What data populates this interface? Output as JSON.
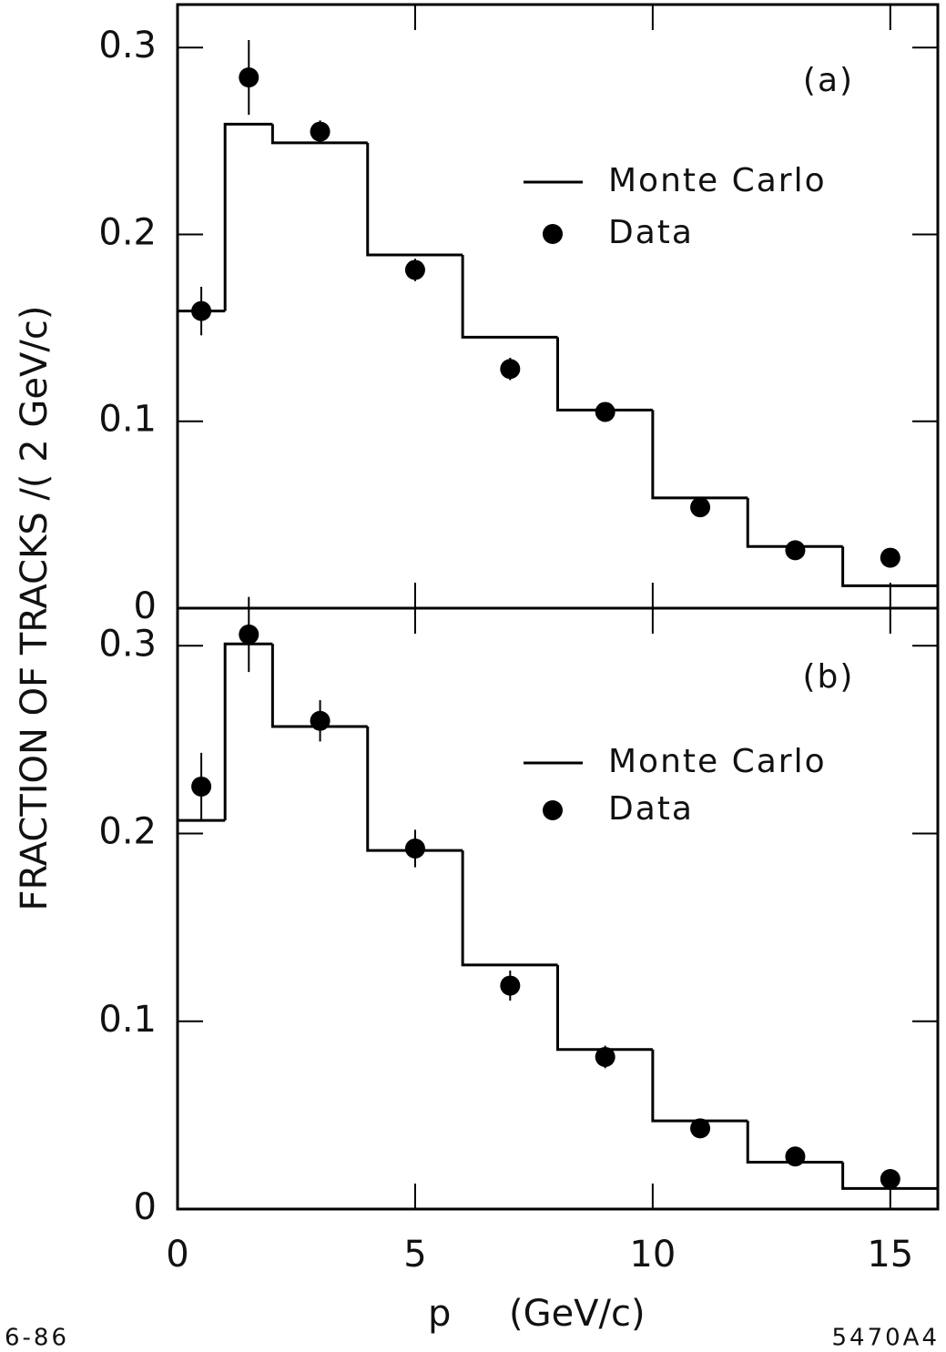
{
  "figure": {
    "ylabel": "FRACTION OF TRACKS /( 2 GeV/c)",
    "xlabel": "p     (GeV/c)",
    "footer_left": "6-86",
    "footer_right": "5470A4"
  },
  "chart_data": [
    {
      "type": "histogram",
      "panel_label": "(a)",
      "xlim": [
        0,
        16
      ],
      "ylim": [
        0,
        0.323
      ],
      "xticks": [
        0,
        5,
        10,
        15
      ],
      "xtick_labels": false,
      "yticks": [
        0,
        0.1,
        0.2,
        0.3
      ],
      "grid": false,
      "series": [
        {
          "name": "Monte Carlo",
          "color": "#000000",
          "bins": [
            0,
            1,
            2,
            4,
            6,
            8,
            10,
            12,
            14,
            16
          ],
          "values": [
            0.159,
            0.259,
            0.249,
            0.189,
            0.145,
            0.106,
            0.059,
            0.033,
            0.012
          ]
        },
        {
          "name": "Data",
          "color": "#000000",
          "x": [
            0.5,
            1.5,
            3,
            5,
            7,
            9,
            11,
            13,
            15
          ],
          "values": [
            0.159,
            0.284,
            0.255,
            0.181,
            0.128,
            0.105,
            0.054,
            0.031,
            0.027
          ],
          "errors": [
            0.013,
            0.02,
            0.006,
            0.006,
            0.006,
            0.005,
            0.004,
            0.002,
            0.002
          ]
        }
      ]
    },
    {
      "type": "histogram",
      "panel_label": "(b)",
      "xlim": [
        0,
        16
      ],
      "ylim": [
        0,
        0.32
      ],
      "xticks": [
        0,
        5,
        10,
        15
      ],
      "xtick_labels": true,
      "yticks": [
        0,
        0.1,
        0.2,
        0.3
      ],
      "grid": false,
      "series": [
        {
          "name": "Monte Carlo",
          "color": "#000000",
          "bins": [
            0,
            1,
            2,
            4,
            6,
            8,
            10,
            12,
            14,
            16
          ],
          "values": [
            0.207,
            0.301,
            0.257,
            0.191,
            0.13,
            0.085,
            0.047,
            0.025,
            0.011
          ]
        },
        {
          "name": "Data",
          "color": "#000000",
          "x": [
            0.5,
            1.5,
            3,
            5,
            7,
            9,
            11,
            13,
            15
          ],
          "values": [
            0.225,
            0.306,
            0.26,
            0.192,
            0.119,
            0.081,
            0.043,
            0.028,
            0.016
          ],
          "errors": [
            0.018,
            0.02,
            0.011,
            0.01,
            0.008,
            0.006,
            0.004,
            0.003,
            0.002
          ]
        }
      ]
    }
  ]
}
